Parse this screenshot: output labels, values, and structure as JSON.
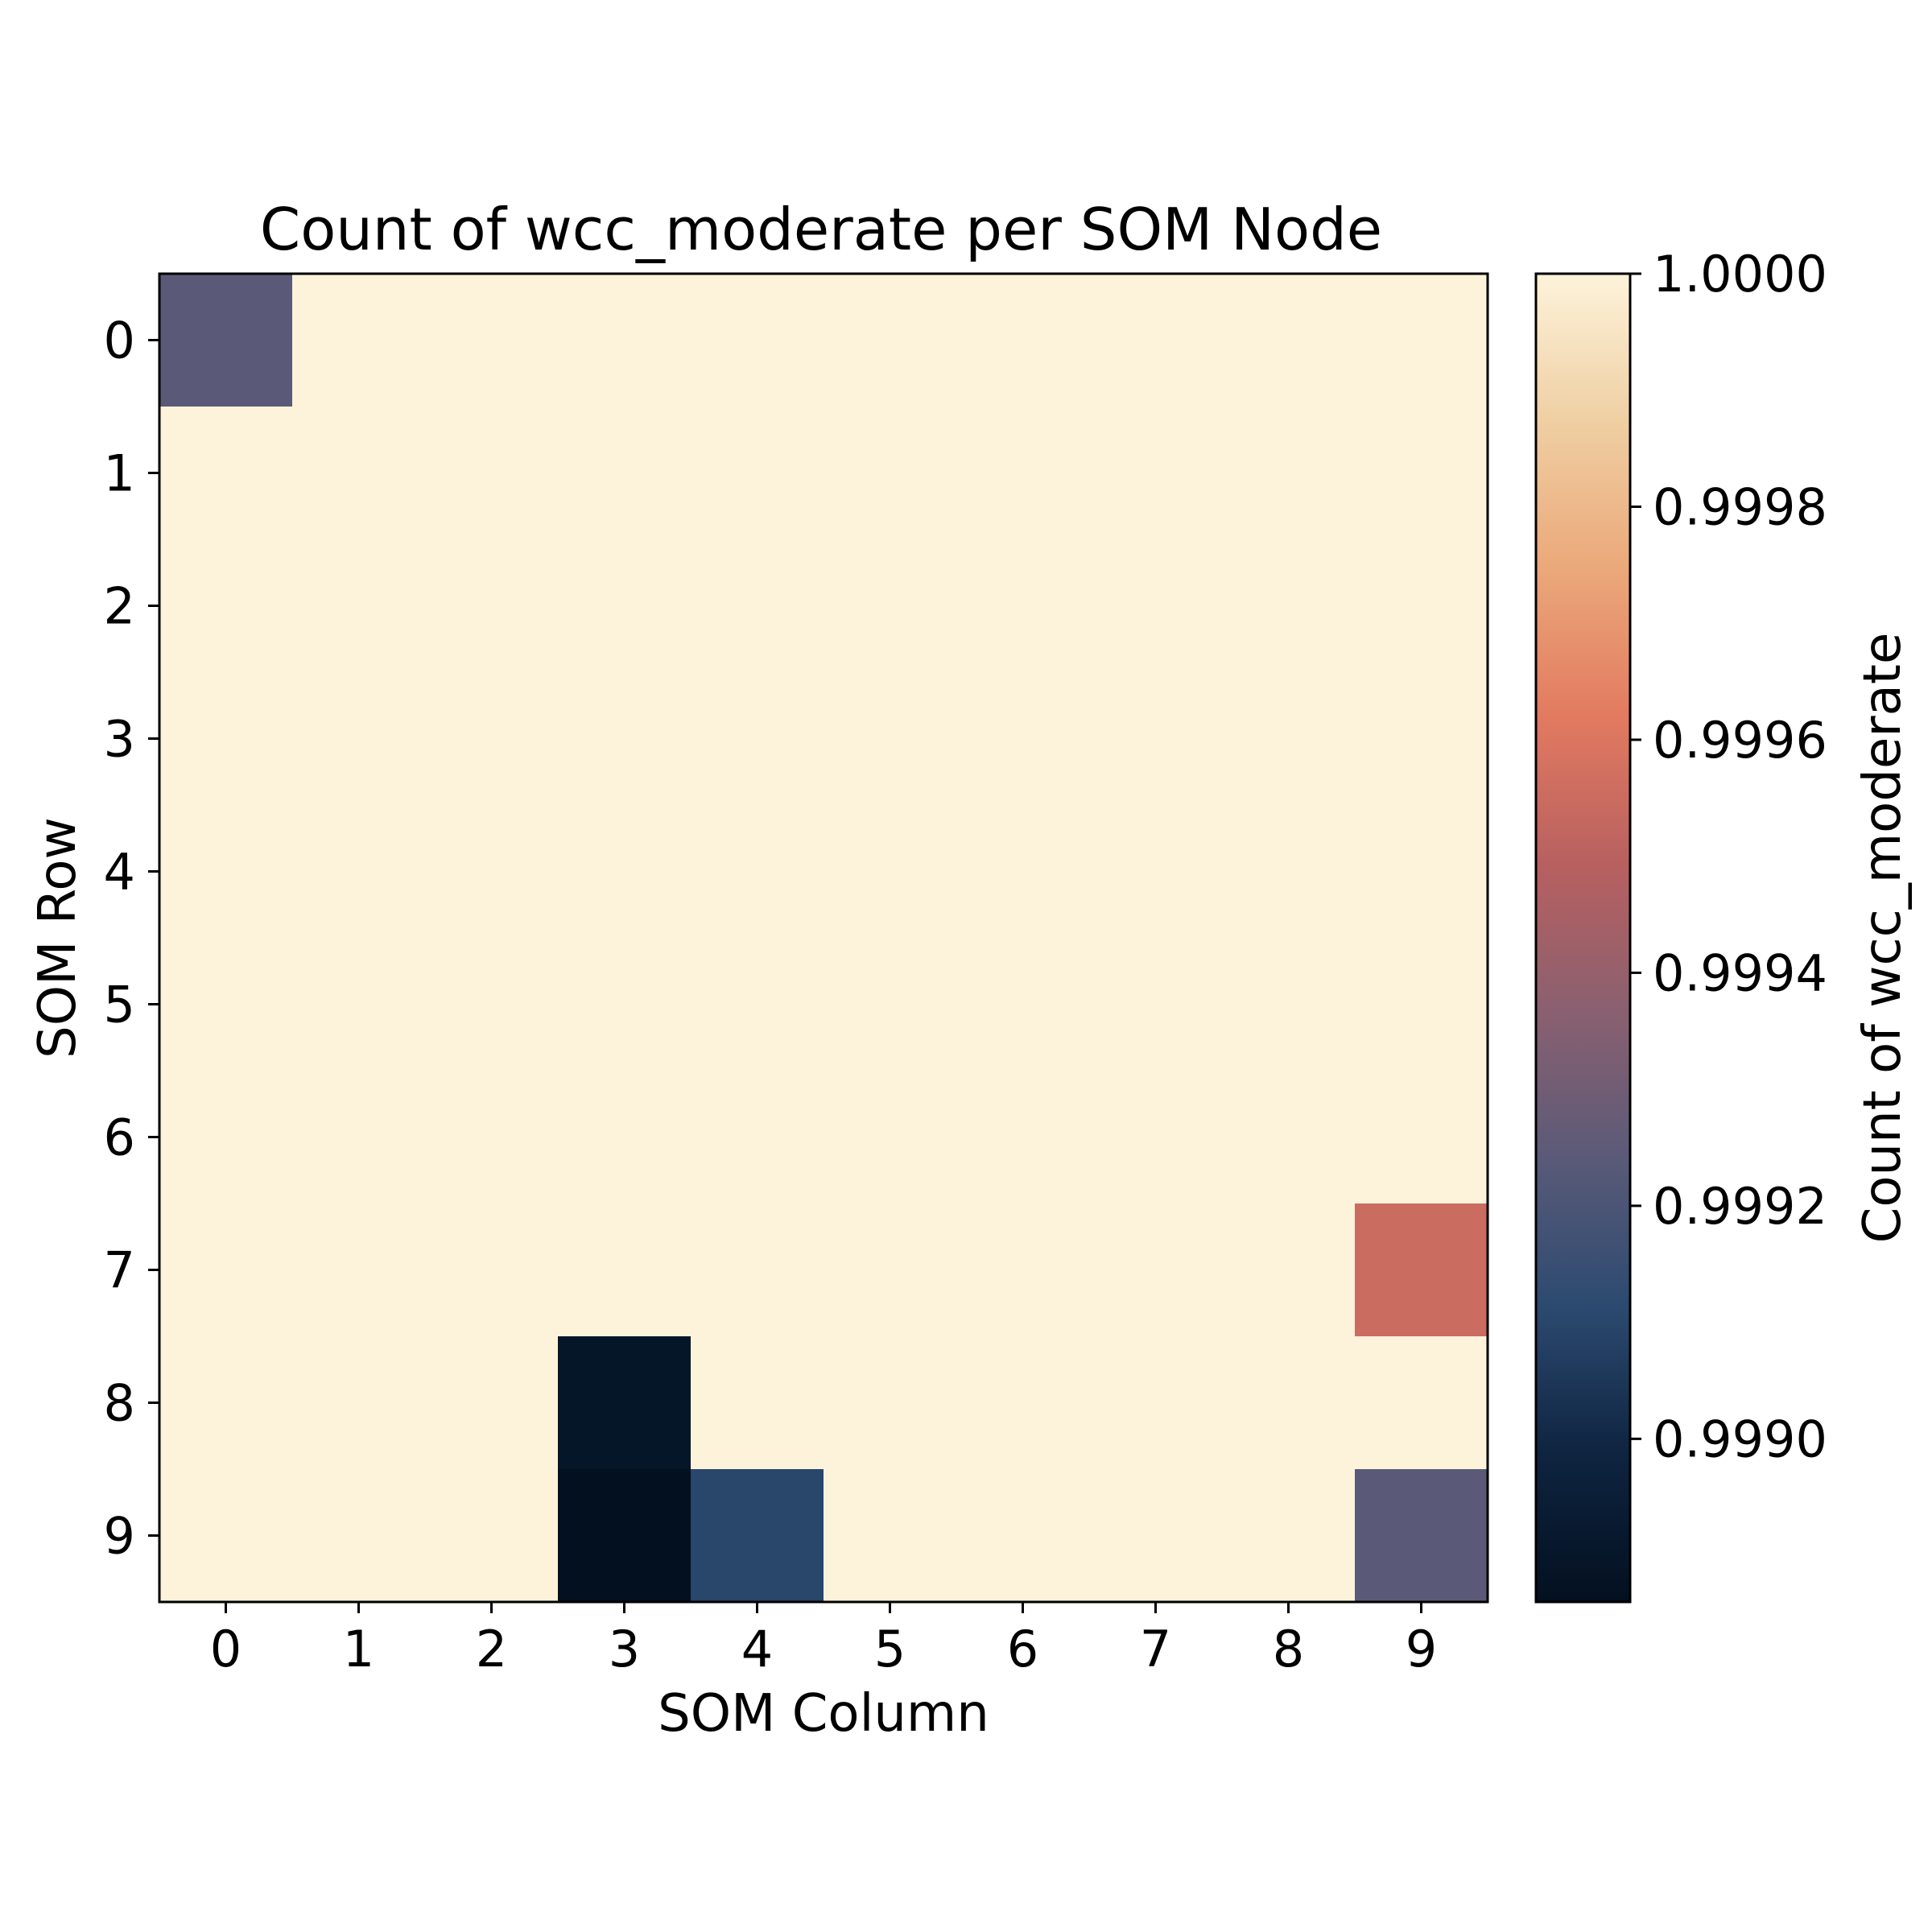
{
  "chart_data": {
    "type": "heatmap",
    "title": "Count of wcc_moderate per SOM Node",
    "xlabel": "SOM Column",
    "ylabel": "SOM Row",
    "x_categories": [
      "0",
      "1",
      "2",
      "3",
      "4",
      "5",
      "6",
      "7",
      "8",
      "9"
    ],
    "y_categories": [
      "0",
      "1",
      "2",
      "3",
      "4",
      "5",
      "6",
      "7",
      "8",
      "9"
    ],
    "values": [
      [
        0.99924,
        1,
        1,
        1,
        1,
        1,
        1,
        1,
        1,
        1
      ],
      [
        1,
        1,
        1,
        1,
        1,
        1,
        1,
        1,
        1,
        1
      ],
      [
        1,
        1,
        1,
        1,
        1,
        1,
        1,
        1,
        1,
        1
      ],
      [
        1,
        1,
        1,
        1,
        1,
        1,
        1,
        1,
        1,
        1
      ],
      [
        1,
        1,
        1,
        1,
        1,
        1,
        1,
        1,
        1,
        1
      ],
      [
        1,
        1,
        1,
        1,
        1,
        1,
        1,
        1,
        1,
        1
      ],
      [
        1,
        1,
        1,
        1,
        1,
        1,
        1,
        1,
        1,
        1
      ],
      [
        1,
        1,
        1,
        1,
        1,
        1,
        1,
        1,
        1,
        0.99955
      ],
      [
        1,
        1,
        1,
        0.9989,
        1,
        1,
        1,
        1,
        1,
        1
      ],
      [
        1,
        1,
        1,
        0.99886,
        0.9991,
        1,
        1,
        1,
        1,
        0.99924
      ]
    ],
    "colorbar": {
      "label": "Count of wcc_moderate",
      "vmin": 0.99886,
      "vmax": 1.0,
      "ticks": [
        0.999,
        0.9992,
        0.9994,
        0.9996,
        0.9998,
        1.0
      ],
      "tick_labels": [
        "0.9990",
        "0.9992",
        "0.9994",
        "0.9996",
        "0.9998",
        "1.0000"
      ],
      "colormap": [
        "#03101f",
        "#0e2440",
        "#2c4a70",
        "#5a5a78",
        "#8a6070",
        "#b86060",
        "#e27a60",
        "#eba87a",
        "#efcfa3",
        "#fdf3da"
      ]
    }
  }
}
